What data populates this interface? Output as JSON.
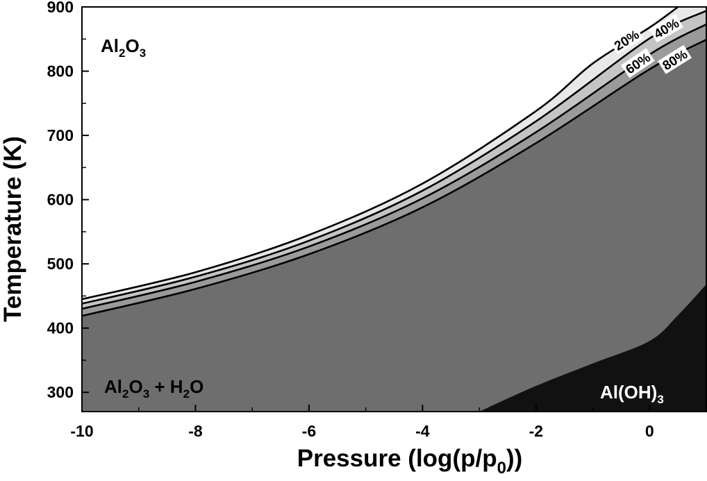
{
  "chart_data": {
    "type": "area",
    "title": "",
    "xlabel": "Pressure (log(p/p",
    "xlabel_sub": "0",
    "xlabel_end": "))",
    "ylabel": "Temperature (K)",
    "xlim": [
      -10,
      1
    ],
    "ylim": [
      270,
      900
    ],
    "x_ticks": [
      -10,
      -8,
      -6,
      -4,
      -2,
      0
    ],
    "x_tick_labels": [
      "-10",
      "-8",
      "-6",
      "-4",
      "-2",
      "0"
    ],
    "y_ticks": [
      300,
      400,
      500,
      600,
      700,
      800,
      900
    ],
    "y_tick_labels": [
      "300",
      "400",
      "500",
      "600",
      "700",
      "800",
      "900"
    ],
    "grid": false,
    "legend": "none",
    "colors": {
      "al2o3_region": "#ffffff",
      "band_20_40": "#e8e8e8",
      "band_40_60": "#c4c4c4",
      "band_60_80": "#9a9a9a",
      "hydrated_region": "#6e6e6e",
      "aloh3_region": "#111111",
      "contour_line": "#000000"
    },
    "contours": [
      {
        "label": "20%",
        "x": [
          -10,
          -8,
          -6,
          -4,
          -2,
          -1,
          0,
          0.5
        ],
        "y": [
          445,
          487,
          545,
          625,
          738,
          812,
          868,
          900
        ]
      },
      {
        "label": "40%",
        "x": [
          -10,
          -8,
          -6,
          -4,
          -2,
          0,
          1
        ],
        "y": [
          438,
          480,
          536,
          614,
          722,
          851,
          894
        ]
      },
      {
        "label": "60%",
        "x": [
          -10,
          -8,
          -6,
          -4,
          -2,
          0,
          1
        ],
        "y": [
          430,
          472,
          527,
          602,
          705,
          826,
          873
        ]
      },
      {
        "label": "80%",
        "x": [
          -10,
          -8,
          -6,
          -4,
          -2,
          0,
          1
        ],
        "y": [
          419,
          461,
          515,
          588,
          688,
          803,
          849
        ]
      }
    ],
    "aloh3_boundary": {
      "x": [
        -3,
        -2,
        -1,
        0,
        0.5,
        1
      ],
      "y": [
        270,
        310,
        345,
        380,
        420,
        468
      ]
    },
    "regions": [
      {
        "name": "Al",
        "sub1": "2",
        "mid": "O",
        "sub2": "3",
        "tail": ""
      },
      {
        "name": "Al",
        "sub1": "2",
        "mid": "O",
        "sub2": "3",
        "tail": " + H",
        "sub3": "2",
        "end": "O"
      },
      {
        "name": "Al(OH)",
        "sub1": "3"
      }
    ]
  }
}
